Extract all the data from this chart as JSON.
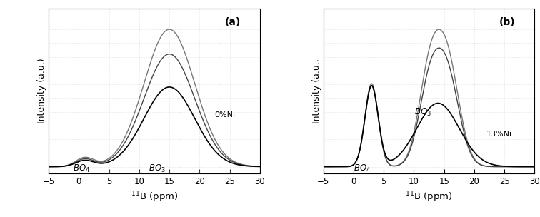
{
  "xlim": [
    -5,
    30
  ],
  "xticks": [
    -5,
    0,
    5,
    10,
    15,
    20,
    25,
    30
  ],
  "xlabel": "$^{11}$B (ppm)",
  "ylabel_a": "Intensity (a.u.)",
  "ylabel_b": "Intensity (a.u.,",
  "panel_a_label": "(a)",
  "panel_b_label": "(b)",
  "panel_a_annotation1": "BO$_4$",
  "panel_a_annotation2": "BO$_3$",
  "panel_a_ni_label": "0%Ni",
  "panel_b_annotation1": "BO$_4$",
  "panel_b_annotation2": "BO$_3$",
  "panel_b_ni_label": "13%Ni",
  "line_colors_a": [
    "#000000",
    "#444444",
    "#777777"
  ],
  "line_colors_b": [
    "#000000",
    "#444444",
    "#777777"
  ],
  "background_color": "#ffffff",
  "plot_bg_color": "#ffffff",
  "dot_color": "#cccccc"
}
